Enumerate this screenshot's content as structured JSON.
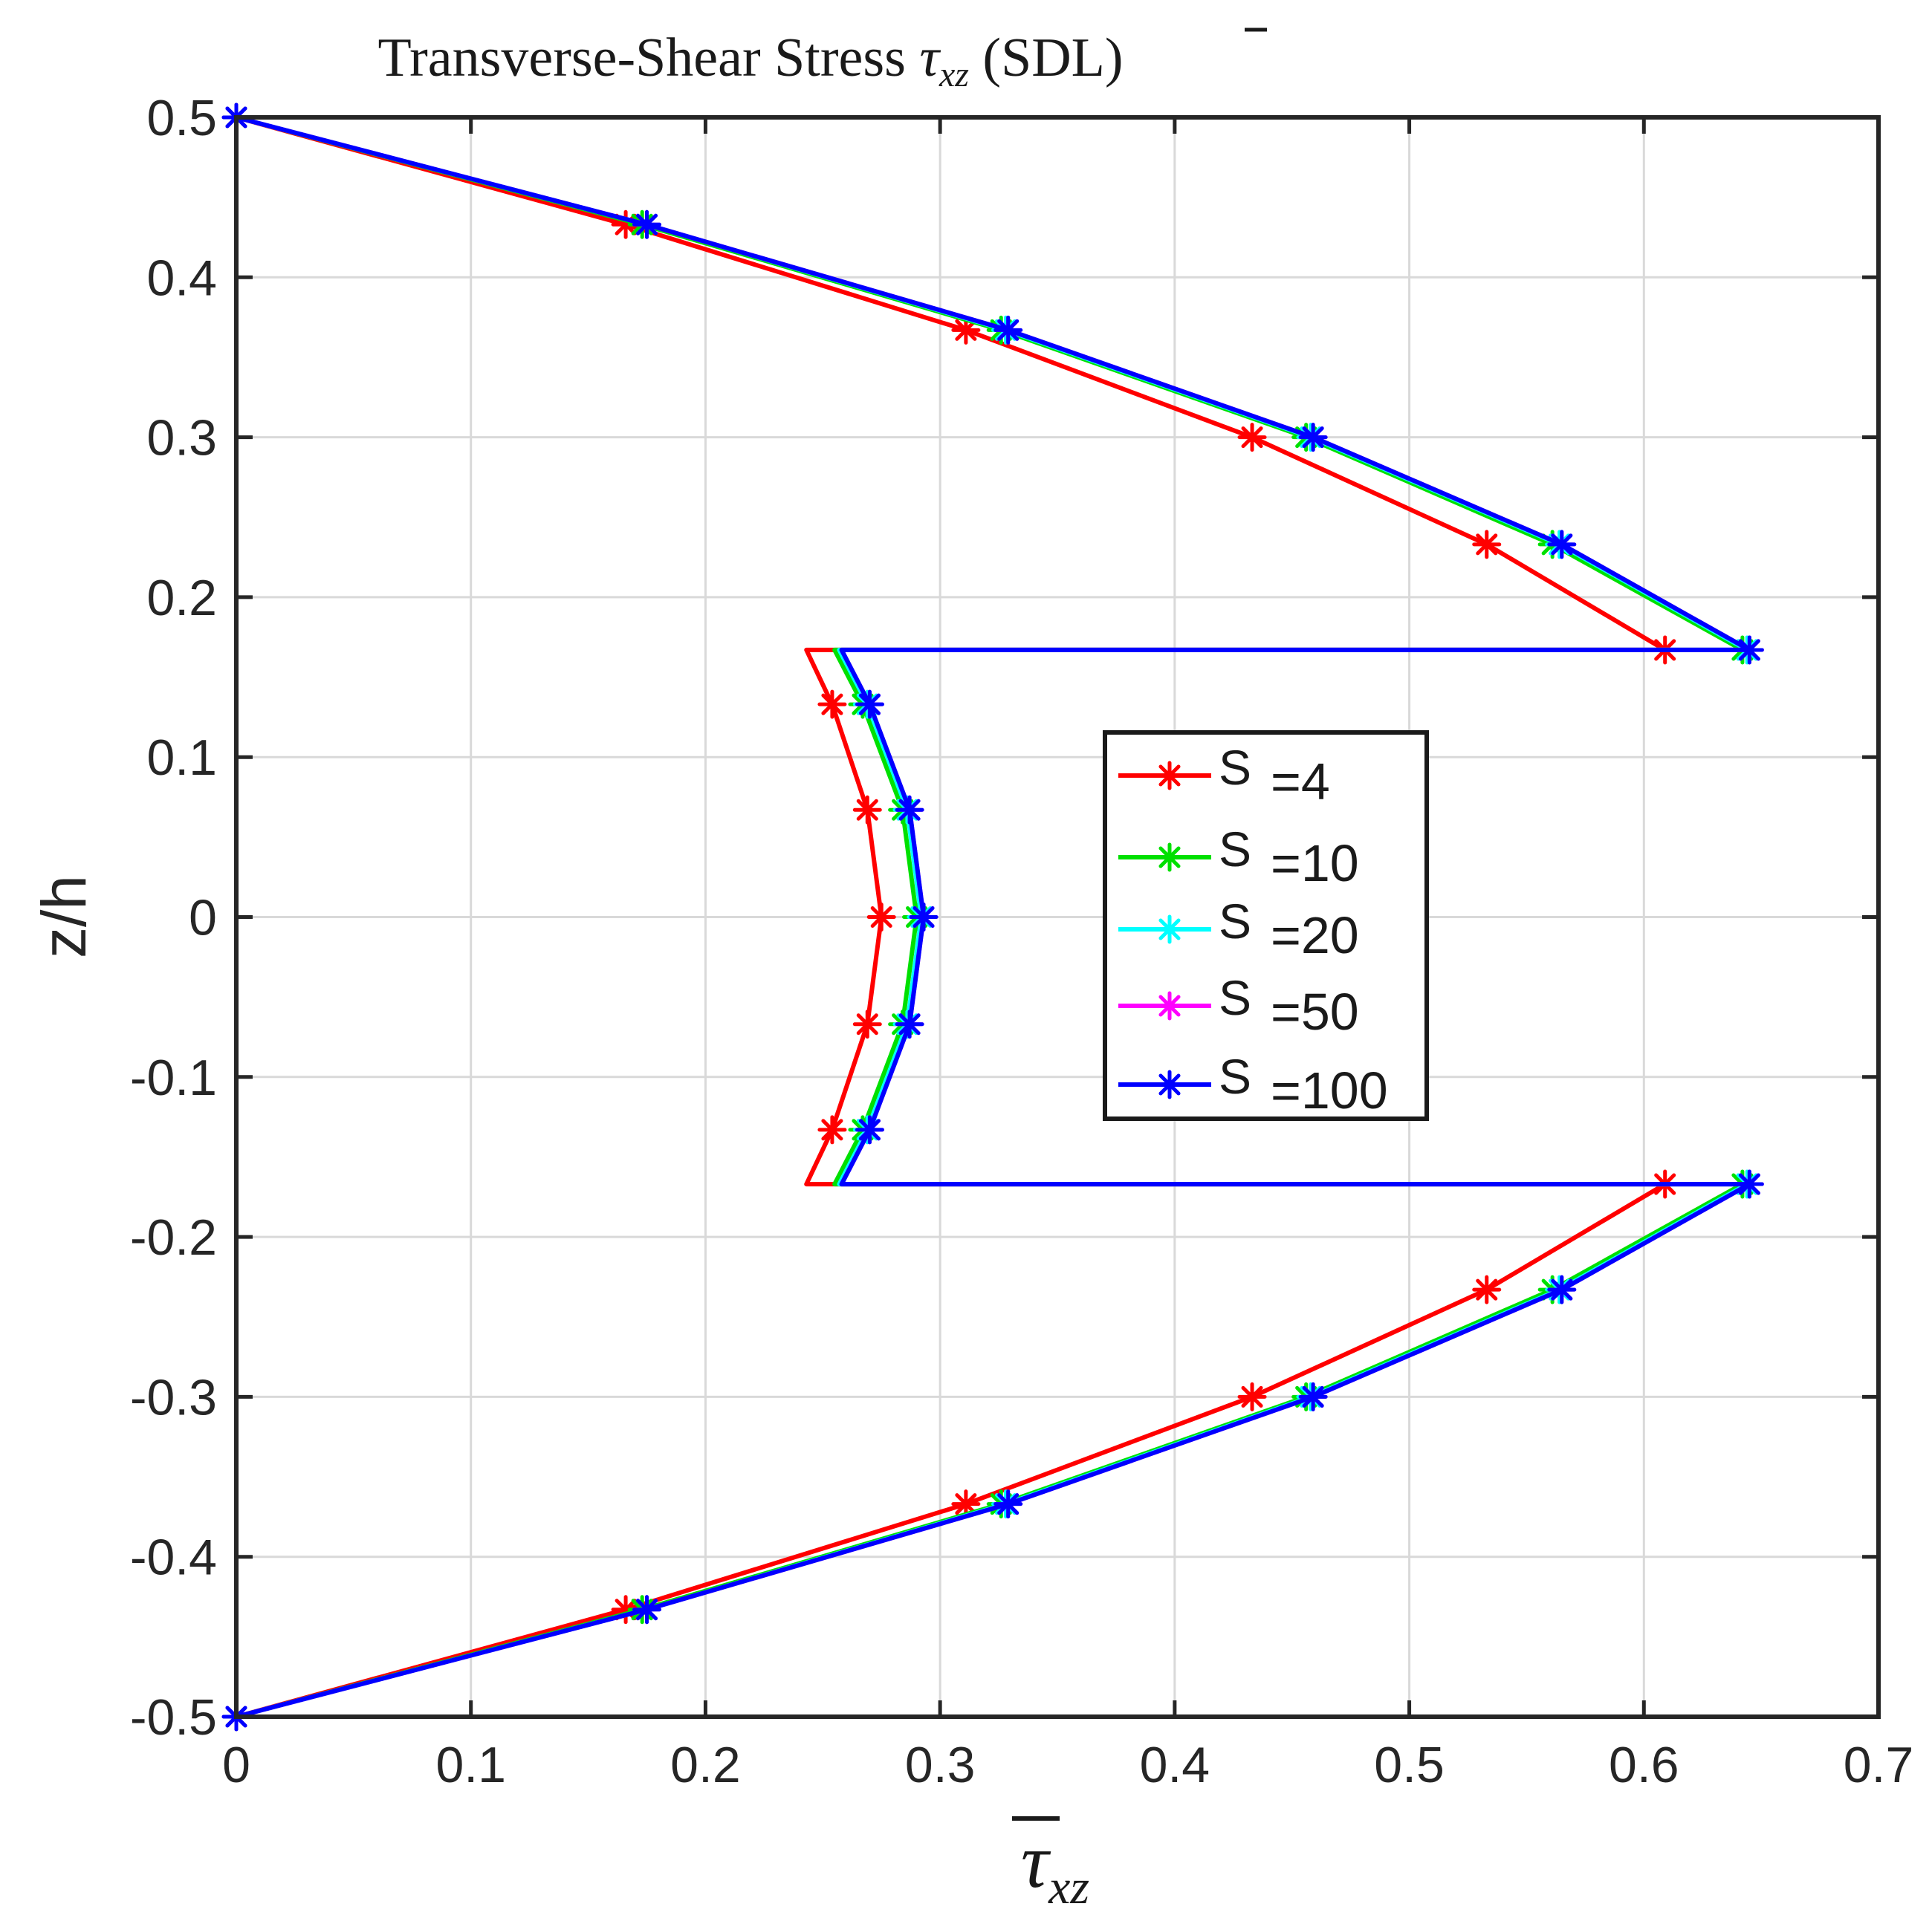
{
  "chart_data": {
    "type": "line",
    "title_prefix": "Transverse-Shear Stress ",
    "title_symbol": "τ",
    "title_subscript": "xz",
    "title_suffix": " (SDL)",
    "xlabel_symbol": "τ",
    "xlabel_subscript": "xz",
    "ylabel": "z/h",
    "xlim": [
      0,
      0.7
    ],
    "ylim": [
      -0.5,
      0.5
    ],
    "xticks": [
      "0",
      "0.1",
      "0.2",
      "0.3",
      "0.4",
      "0.5",
      "0.6",
      "0.7"
    ],
    "yticks": [
      "-0.5",
      "-0.4",
      "-0.3",
      "-0.2",
      "-0.1",
      "0",
      "0.1",
      "0.2",
      "0.3",
      "0.4",
      "0.5"
    ],
    "grid": true,
    "legend_position": "center-right",
    "series": [
      {
        "name": "S =4",
        "legend_letter": "S",
        "legend_value": "=4",
        "color": "#ff0000",
        "x": [
          0,
          0.166,
          0.311,
          0.433,
          0.533,
          0.609,
          0.609,
          0.243,
          0.254,
          0.269,
          0.275,
          0.269,
          0.254,
          0.243,
          0.609,
          0.609,
          0.533,
          0.433,
          0.311,
          0.166,
          0
        ],
        "y": [
          0.5,
          0.433,
          0.367,
          0.3,
          0.233,
          0.167,
          0.167,
          0.167,
          0.133,
          0.067,
          0,
          -0.067,
          -0.133,
          -0.167,
          -0.167,
          -0.167,
          -0.233,
          -0.3,
          -0.367,
          -0.433,
          -0.5
        ],
        "markers": [
          0,
          1,
          2,
          3,
          4,
          5,
          8,
          9,
          10,
          11,
          12,
          15,
          16,
          17,
          18,
          19,
          20
        ]
      },
      {
        "name": "S =10",
        "legend_letter": "S",
        "legend_value": "=10",
        "color": "#00e000",
        "x": [
          0,
          0.173,
          0.326,
          0.456,
          0.561,
          0.642,
          0.642,
          0.255,
          0.267,
          0.284,
          0.29,
          0.284,
          0.267,
          0.255,
          0.642,
          0.642,
          0.561,
          0.456,
          0.326,
          0.173,
          0
        ],
        "y": [
          0.5,
          0.433,
          0.367,
          0.3,
          0.233,
          0.167,
          0.167,
          0.167,
          0.133,
          0.067,
          0,
          -0.067,
          -0.133,
          -0.167,
          -0.167,
          -0.167,
          -0.233,
          -0.3,
          -0.367,
          -0.433,
          -0.5
        ],
        "markers": [
          0,
          1,
          2,
          3,
          4,
          5,
          8,
          9,
          10,
          11,
          12,
          15,
          16,
          17,
          18,
          19,
          20
        ]
      },
      {
        "name": "S =20",
        "legend_letter": "S",
        "legend_value": "=20",
        "color": "#00ffff",
        "x": [
          0,
          0.175,
          0.328,
          0.458,
          0.564,
          0.644,
          0.644,
          0.257,
          0.269,
          0.286,
          0.292,
          0.286,
          0.269,
          0.257,
          0.644,
          0.644,
          0.564,
          0.458,
          0.328,
          0.175,
          0
        ],
        "y": [
          0.5,
          0.433,
          0.367,
          0.3,
          0.233,
          0.167,
          0.167,
          0.167,
          0.133,
          0.067,
          0,
          -0.067,
          -0.133,
          -0.167,
          -0.167,
          -0.167,
          -0.233,
          -0.3,
          -0.367,
          -0.433,
          -0.5
        ],
        "markers": [
          0,
          1,
          2,
          3,
          4,
          5,
          8,
          9,
          10,
          11,
          12,
          15,
          16,
          17,
          18,
          19,
          20
        ]
      },
      {
        "name": "S =50",
        "legend_letter": "S",
        "legend_value": "=50",
        "color": "#ff00ff",
        "x": [
          0,
          0.175,
          0.329,
          0.459,
          0.565,
          0.645,
          0.645,
          0.258,
          0.27,
          0.287,
          0.293,
          0.287,
          0.27,
          0.258,
          0.645,
          0.645,
          0.565,
          0.459,
          0.329,
          0.175,
          0
        ],
        "y": [
          0.5,
          0.433,
          0.367,
          0.3,
          0.233,
          0.167,
          0.167,
          0.167,
          0.133,
          0.067,
          0,
          -0.067,
          -0.133,
          -0.167,
          -0.167,
          -0.167,
          -0.233,
          -0.3,
          -0.367,
          -0.433,
          -0.5
        ],
        "markers": [
          0,
          1,
          2,
          3,
          4,
          5,
          8,
          9,
          10,
          11,
          12,
          15,
          16,
          17,
          18,
          19,
          20
        ]
      },
      {
        "name": "S =100",
        "legend_letter": "S",
        "legend_value": "=100",
        "color": "#0000ff",
        "x": [
          0,
          0.175,
          0.329,
          0.459,
          0.565,
          0.645,
          0.645,
          0.258,
          0.27,
          0.287,
          0.293,
          0.287,
          0.27,
          0.258,
          0.645,
          0.645,
          0.565,
          0.459,
          0.329,
          0.175,
          0
        ],
        "y": [
          0.5,
          0.433,
          0.367,
          0.3,
          0.233,
          0.167,
          0.167,
          0.167,
          0.133,
          0.067,
          0,
          -0.067,
          -0.133,
          -0.167,
          -0.167,
          -0.167,
          -0.233,
          -0.3,
          -0.367,
          -0.433,
          -0.5
        ],
        "markers": [
          0,
          1,
          2,
          3,
          4,
          5,
          8,
          9,
          10,
          11,
          12,
          15,
          16,
          17,
          18,
          19,
          20
        ]
      }
    ]
  }
}
